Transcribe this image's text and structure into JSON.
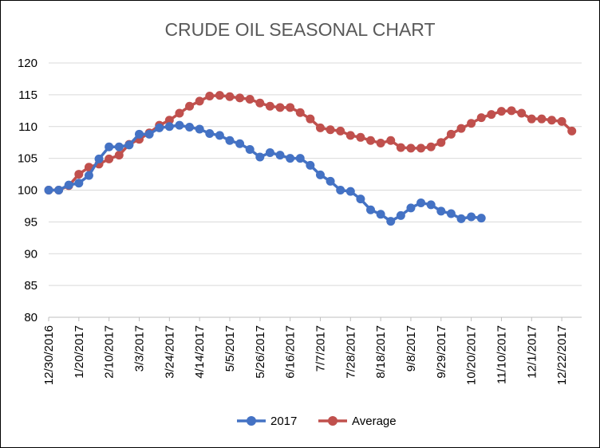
{
  "chart_data": {
    "type": "line",
    "title": "CRUDE OIL SEASONAL CHART",
    "xlabel": "",
    "ylabel": "",
    "ylim": [
      80,
      120
    ],
    "y_ticks": [
      "80",
      "85",
      "90",
      "95",
      "100",
      "105",
      "110",
      "115",
      "120"
    ],
    "x_tick_labels": [
      "12/30/2016",
      "1/20/2017",
      "2/10/2017",
      "3/3/2017",
      "3/24/2017",
      "4/14/2017",
      "5/5/2017",
      "5/26/2017",
      "6/16/2017",
      "7/7/2017",
      "7/28/2017",
      "8/18/2017",
      "9/8/2017",
      "9/29/2017",
      "10/20/2017",
      "11/10/2017",
      "12/1/2017",
      "12/22/2017"
    ],
    "x_week_count": 53,
    "grid": "horizontal",
    "legend_position": "bottom",
    "series": [
      {
        "name": "2017",
        "color": "#4472C4",
        "values": [
          100,
          100,
          100.8,
          101.1,
          102.3,
          104.9,
          106.8,
          106.8,
          107.1,
          108.8,
          108.8,
          109.8,
          110.0,
          110.2,
          109.9,
          109.6,
          108.9,
          108.6,
          107.8,
          107.3,
          106.4,
          105.2,
          105.9,
          105.5,
          105.0,
          105.0,
          103.9,
          102.4,
          101.4,
          100.0,
          99.8,
          98.6,
          96.9,
          96.2,
          95.1,
          96.0,
          97.2,
          98.0,
          97.7,
          96.7,
          96.3,
          95.5,
          95.8,
          95.6
        ]
      },
      {
        "name": "Average",
        "color": "#C0504D",
        "values": [
          100,
          100,
          100.7,
          102.5,
          103.6,
          104.1,
          104.9,
          105.5,
          107.2,
          108.0,
          109.0,
          110.2,
          111.0,
          112.1,
          113.2,
          114.0,
          114.8,
          114.9,
          114.7,
          114.5,
          114.3,
          113.7,
          113.2,
          113.0,
          113.0,
          112.2,
          111.2,
          109.8,
          109.5,
          109.3,
          108.6,
          108.3,
          107.8,
          107.4,
          107.8,
          106.7,
          106.6,
          106.6,
          106.8,
          107.5,
          108.8,
          109.7,
          110.5,
          111.4,
          111.9,
          112.4,
          112.5,
          112.1,
          111.2,
          111.2,
          111.0,
          110.8,
          109.3
        ]
      }
    ]
  }
}
